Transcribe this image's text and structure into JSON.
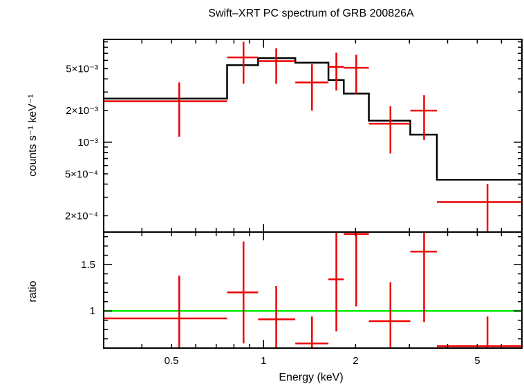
{
  "chart_data": [
    {
      "id": "spectrum",
      "type": "step-errorbar",
      "title": "Swift–XRT PC spectrum of GRB 200826A",
      "xlabel": "",
      "ylabel": "counts s⁻¹ keV⁻¹",
      "xscale": "log",
      "yscale": "log",
      "xlim": [
        0.3,
        7.0
      ],
      "ylim": [
        0.00014,
        0.0095
      ],
      "ytick_labels": [
        {
          "value": 0.0002,
          "label": "2×10⁻⁴"
        },
        {
          "value": 0.0005,
          "label": "5×10⁻⁴"
        },
        {
          "value": 0.001,
          "label": "10⁻³"
        },
        {
          "value": 0.002,
          "label": "2×10⁻³"
        },
        {
          "value": 0.005,
          "label": "5×10⁻³"
        }
      ],
      "data_points": [
        {
          "x": 0.53,
          "xlo": 0.3,
          "xhi": 0.76,
          "y": 0.00245,
          "ylo": 0.00113,
          "yhi": 0.0037
        },
        {
          "x": 0.86,
          "xlo": 0.76,
          "xhi": 0.96,
          "y": 0.0064,
          "ylo": 0.0036,
          "yhi": 0.009
        },
        {
          "x": 1.1,
          "xlo": 0.96,
          "xhi": 1.27,
          "y": 0.0059,
          "ylo": 0.0036,
          "yhi": 0.0078
        },
        {
          "x": 1.44,
          "xlo": 1.27,
          "xhi": 1.63,
          "y": 0.0037,
          "ylo": 0.002,
          "yhi": 0.0055
        },
        {
          "x": 1.73,
          "xlo": 1.63,
          "xhi": 1.83,
          "y": 0.0052,
          "ylo": 0.0031,
          "yhi": 0.0071
        },
        {
          "x": 2.01,
          "xlo": 1.83,
          "xhi": 2.21,
          "y": 0.0051,
          "ylo": 0.0029,
          "yhi": 0.0068
        },
        {
          "x": 2.6,
          "xlo": 2.21,
          "xhi": 3.02,
          "y": 0.0015,
          "ylo": 0.00078,
          "yhi": 0.0022
        },
        {
          "x": 3.35,
          "xlo": 3.02,
          "xhi": 3.69,
          "y": 0.002,
          "ylo": 0.00105,
          "yhi": 0.0028
        },
        {
          "x": 5.4,
          "xlo": 3.69,
          "xhi": 7.0,
          "y": 0.00027,
          "ylo": 0.00014,
          "yhi": 0.0004
        }
      ],
      "model_steps": [
        {
          "xlo": 0.3,
          "xhi": 0.76,
          "y": 0.0026
        },
        {
          "xlo": 0.76,
          "xhi": 0.96,
          "y": 0.0054
        },
        {
          "xlo": 0.96,
          "xhi": 1.27,
          "y": 0.0063
        },
        {
          "xlo": 1.27,
          "xhi": 1.63,
          "y": 0.0057
        },
        {
          "xlo": 1.63,
          "xhi": 1.83,
          "y": 0.0039
        },
        {
          "xlo": 1.83,
          "xhi": 2.21,
          "y": 0.0029
        },
        {
          "xlo": 2.21,
          "xhi": 3.02,
          "y": 0.0016
        },
        {
          "xlo": 3.02,
          "xhi": 3.69,
          "y": 0.00118
        },
        {
          "xlo": 3.69,
          "xhi": 7.0,
          "y": 0.00044
        }
      ],
      "data_color": "#ee0000",
      "model_color": "#000000"
    },
    {
      "id": "ratio",
      "type": "errorbar",
      "title": "",
      "xlabel": "Energy (keV)",
      "ylabel": "ratio",
      "xscale": "log",
      "yscale": "linear",
      "xlim": [
        0.3,
        7.0
      ],
      "ylim": [
        0.6,
        1.85
      ],
      "xtick_labels": [
        {
          "value": 0.5,
          "label": "0.5"
        },
        {
          "value": 1,
          "label": "1"
        },
        {
          "value": 2,
          "label": "2"
        },
        {
          "value": 5,
          "label": "5"
        }
      ],
      "ytick_labels": [
        {
          "value": 1,
          "label": "1"
        },
        {
          "value": 1.5,
          "label": "1.5"
        }
      ],
      "data_points": [
        {
          "x": 0.53,
          "xlo": 0.3,
          "xhi": 0.76,
          "y": 0.92,
          "ylo": 0.6,
          "yhi": 1.38
        },
        {
          "x": 0.86,
          "xlo": 0.76,
          "xhi": 0.96,
          "y": 1.2,
          "ylo": 0.65,
          "yhi": 1.75
        },
        {
          "x": 1.1,
          "xlo": 0.96,
          "xhi": 1.27,
          "y": 0.91,
          "ylo": 0.6,
          "yhi": 1.27
        },
        {
          "x": 1.44,
          "xlo": 1.27,
          "xhi": 1.63,
          "y": 0.65,
          "ylo": 0.6,
          "yhi": 0.94
        },
        {
          "x": 1.73,
          "xlo": 1.63,
          "xhi": 1.83,
          "y": 1.34,
          "ylo": 0.78,
          "yhi": 1.85
        },
        {
          "x": 2.01,
          "xlo": 1.83,
          "xhi": 2.21,
          "y": 1.83,
          "ylo": 1.05,
          "yhi": 1.85
        },
        {
          "x": 2.6,
          "xlo": 2.21,
          "xhi": 3.02,
          "y": 0.89,
          "ylo": 0.6,
          "yhi": 1.31
        },
        {
          "x": 3.35,
          "xlo": 3.02,
          "xhi": 3.69,
          "y": 1.64,
          "ylo": 0.88,
          "yhi": 1.85
        },
        {
          "x": 5.4,
          "xlo": 3.69,
          "xhi": 7.0,
          "y": 0.62,
          "ylo": 0.6,
          "yhi": 0.94
        }
      ],
      "reference_line": {
        "y": 1.0,
        "color": "#00ee00"
      },
      "data_color": "#ee0000"
    }
  ]
}
